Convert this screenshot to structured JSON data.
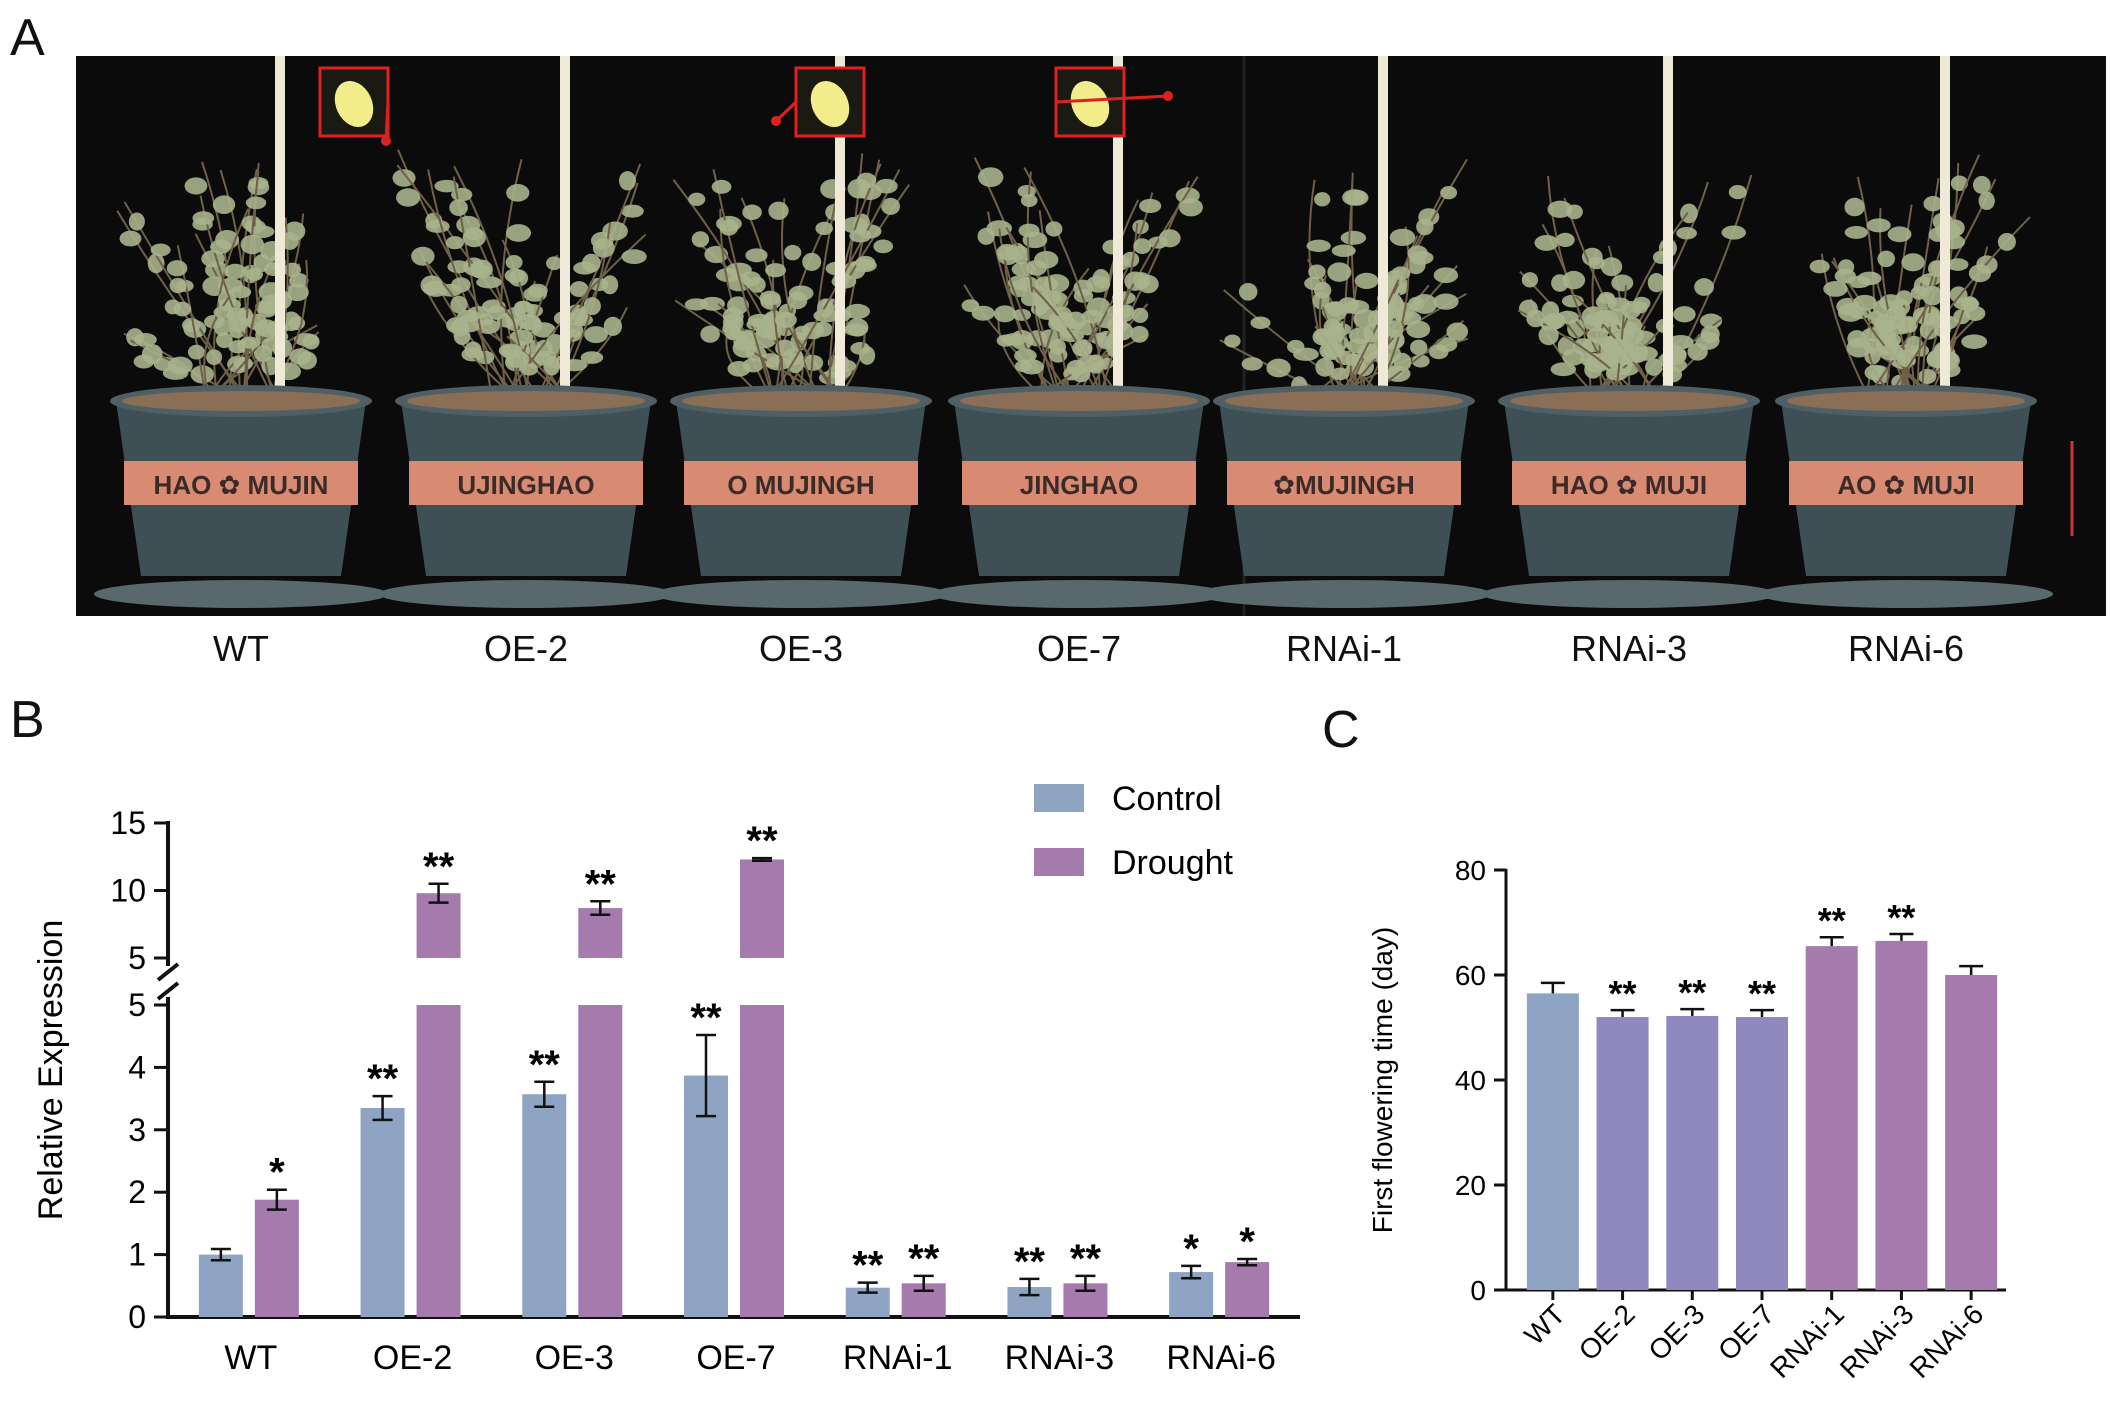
{
  "panel_a": {
    "letter": "A",
    "pot_brand_segments": [
      "HAO ✿ MUJIN",
      "UJINGHAO",
      "O MUJINGH",
      "JINGHAO",
      "✿MUJINGH",
      "HAO ✿ MUJI",
      "AO ✿ MUJI"
    ],
    "genotype_labels": [
      "WT",
      "OE-2",
      "OE-3",
      "OE-7",
      "RNAi-1",
      "RNAi-3",
      "RNAi-6"
    ],
    "colors": {
      "background": "#0b0b0b",
      "pot": "#3e4f55",
      "band": "#d98a72",
      "soil": "#8a6e55",
      "inset_border": "#e02020",
      "leaf": "#a9b28c",
      "stem": "#6f6048"
    }
  },
  "panel_b": {
    "letter": "B"
  },
  "panel_c": {
    "letter": "C"
  },
  "chart_data": [
    {
      "id": "B",
      "type": "bar",
      "categories": [
        "WT",
        "OE-2",
        "OE-3",
        "OE-7",
        "RNAi-1",
        "RNAi-3",
        "RNAi-6"
      ],
      "ylabel": "Relative Expression",
      "xlabel": "",
      "title": "",
      "y_axis_break": {
        "lower_range": [
          0,
          5
        ],
        "upper_range": [
          5,
          15
        ]
      },
      "yticks_lower": [
        "0",
        "1",
        "2",
        "3",
        "4",
        "5"
      ],
      "yticks_upper": [
        "5",
        "10",
        "15"
      ],
      "legend_position": "top-right",
      "series": [
        {
          "name": "Control",
          "color": "#8fa4c2",
          "values": [
            1.0,
            3.35,
            3.57,
            3.87,
            0.47,
            0.48,
            0.72
          ],
          "errors": [
            0.09,
            0.19,
            0.2,
            0.65,
            0.08,
            0.13,
            0.1
          ],
          "significance": [
            "",
            "**",
            "**",
            "**",
            "**",
            "**",
            "*"
          ]
        },
        {
          "name": "Drought",
          "color": "#a57bae",
          "values": [
            1.88,
            9.8,
            8.7,
            12.3,
            0.54,
            0.54,
            0.88
          ],
          "errors": [
            0.16,
            0.7,
            0.5,
            0.1,
            0.12,
            0.12,
            0.05
          ],
          "significance": [
            "*",
            "**",
            "**",
            "**",
            "**",
            "**",
            "*"
          ]
        }
      ]
    },
    {
      "id": "C",
      "type": "bar",
      "categories": [
        "WT",
        "OE-2",
        "OE-3",
        "OE-7",
        "RNAi-1",
        "RNAi-3",
        "RNAi-6"
      ],
      "ylabel": "First flowering time (day)",
      "xlabel": "",
      "title": "",
      "ylim": [
        0,
        80
      ],
      "yticks": [
        "0",
        "20",
        "40",
        "60",
        "80"
      ],
      "values": [
        56.5,
        52,
        52.2,
        52,
        65.5,
        66.5,
        60
      ],
      "errors": [
        2,
        1.3,
        1.3,
        1.3,
        1.7,
        1.3,
        1.7
      ],
      "significance": [
        "",
        "**",
        "**",
        "**",
        "**",
        "**",
        ""
      ],
      "colors": [
        "#8fa4c2",
        "#8f89c0",
        "#8f89c0",
        "#8f89c0",
        "#a57bae",
        "#a57bae",
        "#a57bae"
      ]
    }
  ]
}
